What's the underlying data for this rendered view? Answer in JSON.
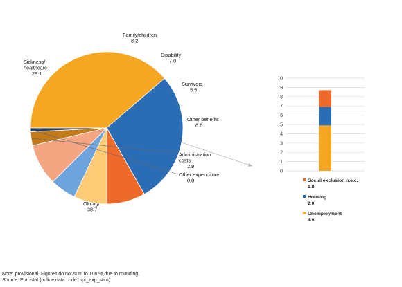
{
  "chart_data": [
    {
      "type": "pie",
      "slices": [
        {
          "label": "Old age",
          "value": 38.7,
          "color": "#F5A623"
        },
        {
          "label": "Sickness/ healthcare",
          "value": 28.1,
          "color": "#2A6DB5"
        },
        {
          "label": "Family/children",
          "value": 8.2,
          "color": "#ED6A2A"
        },
        {
          "label": "Disability",
          "value": 7.0,
          "color": "#FDCB76"
        },
        {
          "label": "Survivors",
          "value": 5.5,
          "color": "#6FA3DB"
        },
        {
          "label": "Other benefits",
          "value": 8.8,
          "color": "#F4A582"
        },
        {
          "label": "Administration costs",
          "value": 2.9,
          "color": "#C27A1A"
        },
        {
          "label": "Other expenditure",
          "value": 0.8,
          "color": "#1F3F6B"
        }
      ]
    },
    {
      "type": "bar",
      "stacked": true,
      "ylim": [
        0,
        10
      ],
      "yticks": [
        0,
        1,
        2,
        3,
        4,
        5,
        6,
        7,
        8,
        9,
        10
      ],
      "grid": true,
      "series": [
        {
          "name": "Unemployment",
          "value": 4.9,
          "color": "#F5A623"
        },
        {
          "name": "Housing",
          "value": 2.0,
          "color": "#2A6DB5"
        },
        {
          "name": "Social exclusion n.e.c.",
          "value": 1.8,
          "color": "#ED6A2A"
        }
      ],
      "legend": [
        {
          "name": "Social exclusion n.e.c.",
          "value": "1.8",
          "color": "#ED6A2A"
        },
        {
          "name": "Housing",
          "value": "2.0",
          "color": "#2A6DB5"
        },
        {
          "name": "Unemployment",
          "value": "4.9",
          "color": "#F5A623"
        }
      ]
    }
  ],
  "notes": {
    "note": "Note: provisional. Figures do not sum to 100 % due to rounding.",
    "source_label": "Source:",
    "source_text": " Eurostat (online data code: spr_exp_sum)"
  }
}
